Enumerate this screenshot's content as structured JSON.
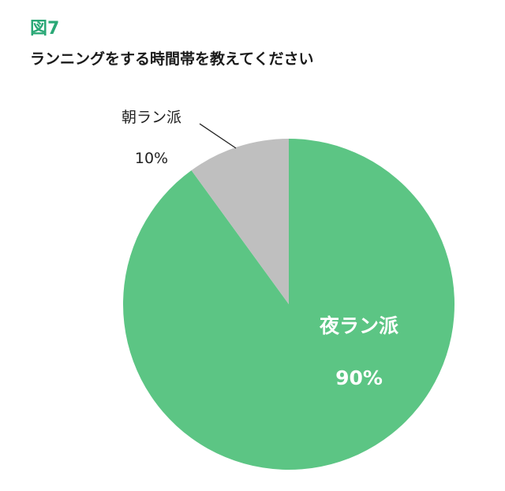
{
  "figure_label": "図7",
  "chart_data": {
    "type": "pie",
    "title": "ランニングをする時間帯を教えてください",
    "slices": [
      {
        "label": "夜ラン派",
        "value": 90,
        "value_label": "90%",
        "color": "#5cc584"
      },
      {
        "label": "朝ラン派",
        "value": 10,
        "value_label": "10%",
        "color": "#bfbfbf"
      }
    ],
    "start_angle_deg": 0,
    "direction": "clockwise",
    "legend": "none"
  }
}
